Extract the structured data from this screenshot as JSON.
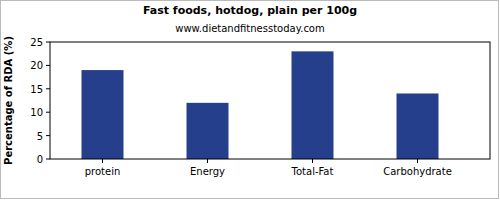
{
  "chart_data": {
    "type": "bar",
    "title": "Fast foods, hotdog, plain per 100g",
    "subtitle": "www.dietandfitnesstoday.com",
    "y_label": "Percentage of RDA (%)",
    "categories": [
      "protein",
      "Energy",
      "Total-Fat",
      "Carbohydrate"
    ],
    "values": [
      19,
      12,
      23,
      14
    ],
    "color": "#253f8c",
    "ylim": [
      0,
      25
    ],
    "yticks": [
      0,
      5,
      10,
      15,
      20,
      25
    ],
    "grid": false
  }
}
